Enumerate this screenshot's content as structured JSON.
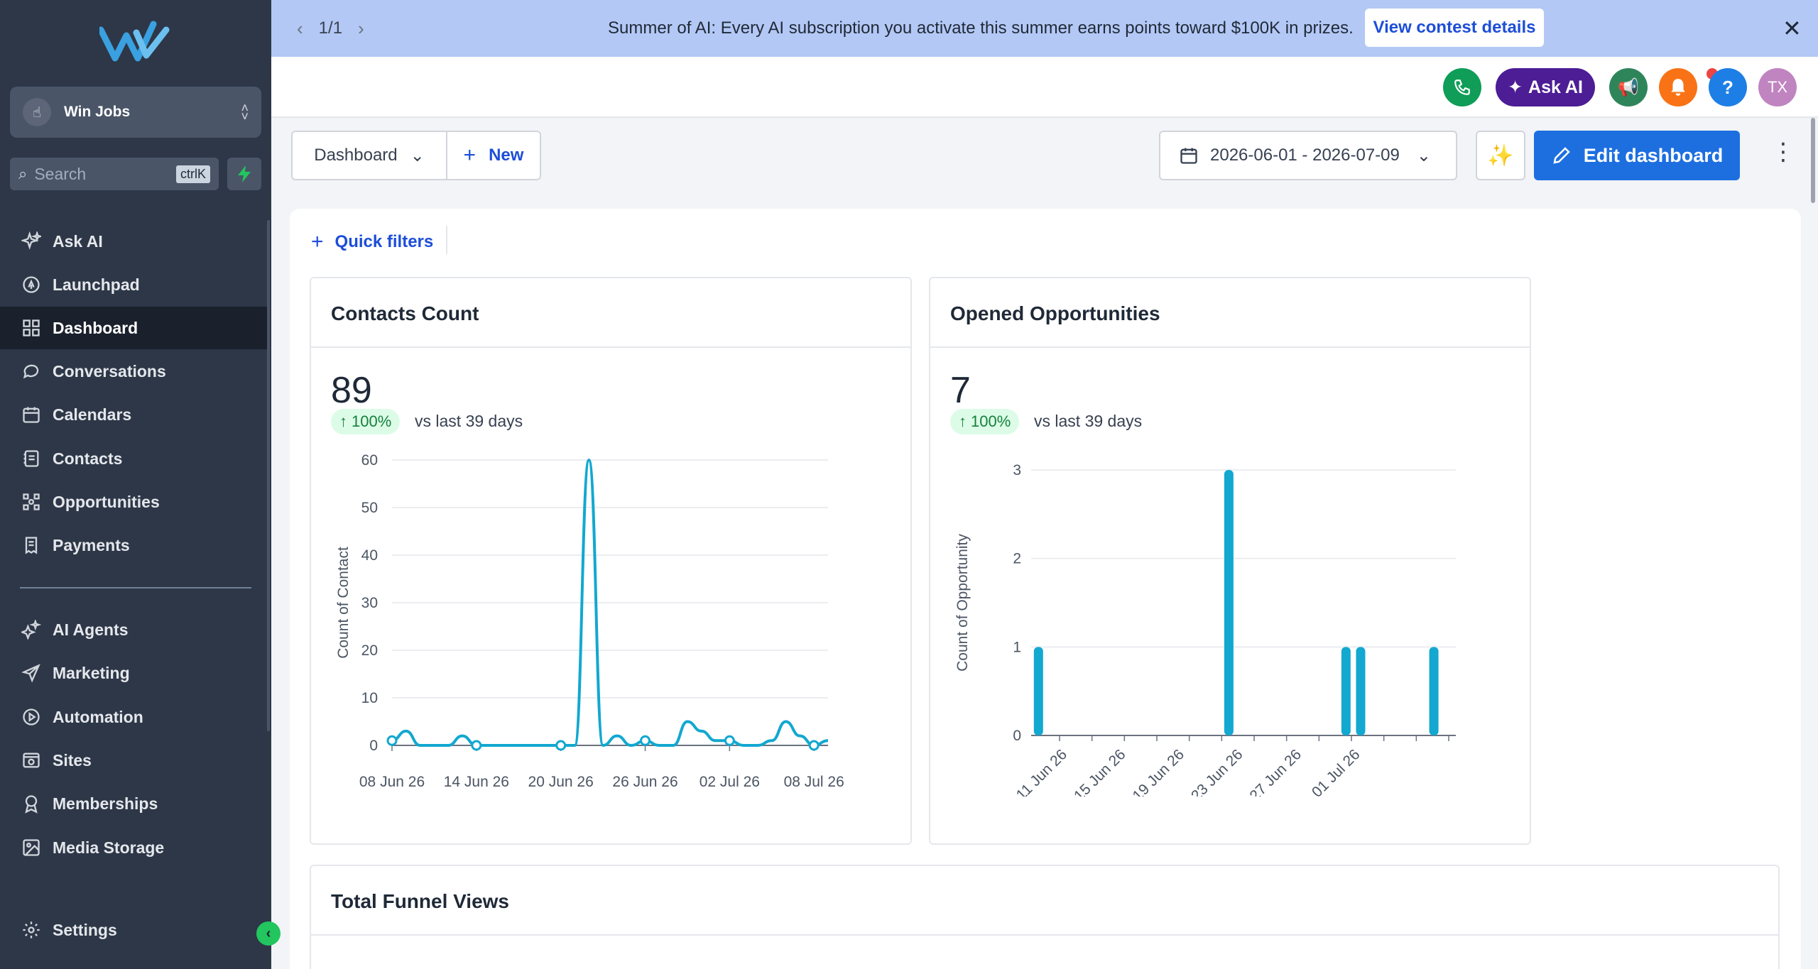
{
  "sidebar": {
    "account_name": "Win Jobs",
    "search_placeholder": "Search",
    "search_shortcut": "ctrlK",
    "items": [
      {
        "label": "Ask AI",
        "icon": "sparkle-icon"
      },
      {
        "label": "Launchpad",
        "icon": "rocket-icon"
      },
      {
        "label": "Dashboard",
        "icon": "grid-icon",
        "active": true
      },
      {
        "label": "Conversations",
        "icon": "chat-icon"
      },
      {
        "label": "Calendars",
        "icon": "calendar-icon"
      },
      {
        "label": "Contacts",
        "icon": "contact-card-icon"
      },
      {
        "label": "Opportunities",
        "icon": "opportunities-icon"
      },
      {
        "label": "Payments",
        "icon": "receipt-icon"
      },
      {
        "label": "AI Agents",
        "icon": "ai-agent-icon"
      },
      {
        "label": "Marketing",
        "icon": "send-icon"
      },
      {
        "label": "Automation",
        "icon": "automation-icon"
      },
      {
        "label": "Sites",
        "icon": "globe-icon"
      },
      {
        "label": "Memberships",
        "icon": "award-icon"
      },
      {
        "label": "Media Storage",
        "icon": "image-icon"
      },
      {
        "label": "Settings",
        "icon": "gear-icon"
      }
    ]
  },
  "banner": {
    "pager": "1/1",
    "message": "Summer of AI: Every AI subscription you activate this summer earns points toward $100K in prizes.",
    "cta": "View contest details"
  },
  "header": {
    "ask_ai": "Ask AI",
    "help": "?",
    "avatar": "TX",
    "colors": {
      "phone": "#0f9d58",
      "ask_ai": "#4c1d95",
      "announce": "#2f855a",
      "bell": "#f97316",
      "help": "#1d7fe5",
      "avatar": "#c084c0"
    }
  },
  "toolbar": {
    "dashboard_select": "Dashboard",
    "new_label": "New",
    "date_range": "2026-06-01 - 2026-07-09",
    "edit_label": "Edit dashboard"
  },
  "main": {
    "quick_filters": "Quick filters",
    "contacts_card": {
      "title": "Contacts Count",
      "value": "89",
      "change": "100%",
      "compare": "vs last 39 days"
    },
    "opps_card": {
      "title": "Opened Opportunities",
      "value": "7",
      "change": "100%",
      "compare": "vs last 39 days"
    },
    "funnel_card": {
      "title": "Total Funnel Views"
    }
  },
  "chart_data": [
    {
      "type": "line",
      "ylabel": "Count of Contact",
      "xlabel": "",
      "ylim": [
        0,
        60
      ],
      "yticks": [
        0,
        10,
        20,
        30,
        40,
        50,
        60
      ],
      "xticks": [
        "08 Jun 26",
        "14 Jun 26",
        "20 Jun 26",
        "26 Jun 26",
        "02 Jul 26",
        "08 Jul 26"
      ],
      "x": [
        "08 Jun 26",
        "09 Jun 26",
        "10 Jun 26",
        "11 Jun 26",
        "12 Jun 26",
        "13 Jun 26",
        "14 Jun 26",
        "15 Jun 26",
        "16 Jun 26",
        "17 Jun 26",
        "18 Jun 26",
        "19 Jun 26",
        "20 Jun 26",
        "21 Jun 26",
        "22 Jun 26",
        "23 Jun 26",
        "24 Jun 26",
        "25 Jun 26",
        "26 Jun 26",
        "27 Jun 26",
        "28 Jun 26",
        "29 Jun 26",
        "30 Jun 26",
        "01 Jul 26",
        "02 Jul 26",
        "03 Jul 26",
        "04 Jul 26",
        "05 Jul 26",
        "06 Jul 26",
        "07 Jul 26",
        "08 Jul 26",
        "09 Jul 26"
      ],
      "values": [
        1,
        3,
        0,
        0,
        0,
        2,
        0,
        0,
        0,
        0,
        0,
        0,
        0,
        0,
        60,
        0,
        2,
        0,
        1,
        0,
        0,
        5,
        3,
        1,
        1,
        0,
        0,
        1,
        5,
        2,
        0,
        1
      ],
      "markers": [
        "08 Jun 26",
        "14 Jun 26",
        "20 Jun 26",
        "26 Jun 26",
        "02 Jul 26",
        "08 Jul 26"
      ],
      "color": "#12a8d0",
      "grid": true
    },
    {
      "type": "bar",
      "ylabel": "Count of Opportunity",
      "xlabel": "",
      "ylim": [
        0,
        3
      ],
      "yticks": [
        0,
        1,
        2,
        3
      ],
      "xticks": [
        "11 Jun 26",
        "15 Jun 26",
        "19 Jun 26",
        "23 Jun 26",
        "27 Jun 26",
        "01 Jul 26"
      ],
      "days": [
        "09 Jun 26",
        "10 Jun 26",
        "11 Jun 26",
        "12 Jun 26",
        "13 Jun 26",
        "14 Jun 26",
        "15 Jun 26",
        "16 Jun 26",
        "17 Jun 26",
        "18 Jun 26",
        "19 Jun 26",
        "20 Jun 26",
        "21 Jun 26",
        "22 Jun 26",
        "23 Jun 26",
        "24 Jun 26",
        "25 Jun 26",
        "26 Jun 26",
        "27 Jun 26",
        "28 Jun 26",
        "29 Jun 26",
        "30 Jun 26",
        "01 Jul 26",
        "02 Jul 26",
        "03 Jul 26",
        "04 Jul 26",
        "05 Jul 26",
        "06 Jul 26",
        "07 Jul 26"
      ],
      "values": [
        1,
        0,
        0,
        0,
        0,
        0,
        0,
        0,
        0,
        0,
        0,
        0,
        0,
        3,
        0,
        0,
        0,
        0,
        0,
        0,
        0,
        1,
        1,
        0,
        0,
        0,
        0,
        1,
        0
      ],
      "color": "#12a8d0",
      "grid": true
    }
  ]
}
